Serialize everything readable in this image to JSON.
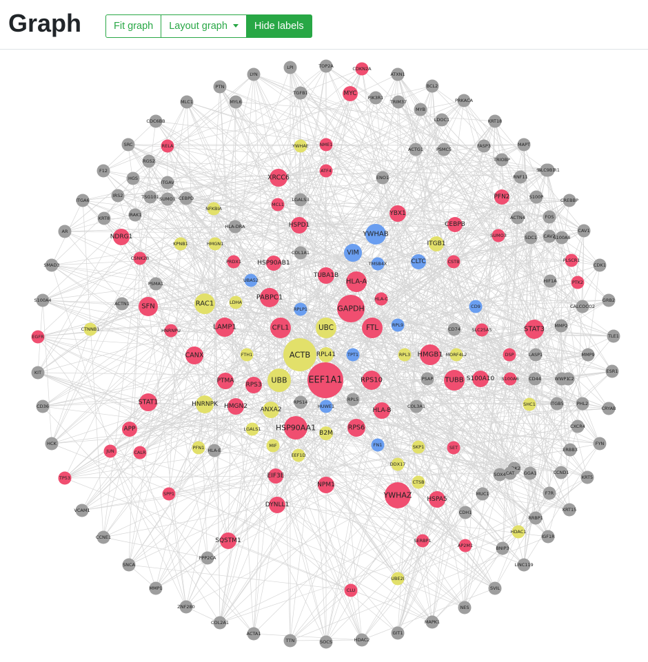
{
  "page": {
    "title": "Graph"
  },
  "toolbar": {
    "fit_label": "Fit graph",
    "layout_label": "Layout graph",
    "hide_labels_label": "Hide labels"
  },
  "colors": {
    "accent": "#28a745",
    "edge": "#d6d6d6",
    "gray": "#9e9e9e",
    "red": "#f04e70",
    "yellow": "#e2e06a",
    "blue": "#6a9ef0"
  },
  "graph": {
    "nodes": [
      [
        "LYN",
        "gray"
      ],
      [
        "LPI",
        "gray"
      ],
      [
        "TOP2A",
        "gray"
      ],
      [
        "CDKN2A",
        "red"
      ],
      [
        "ATXN1",
        "gray"
      ],
      [
        "BCL2",
        "gray"
      ],
      [
        "PRKACA",
        "gray"
      ],
      [
        "KRT18",
        "gray"
      ],
      [
        "MAPT",
        "gray"
      ],
      [
        "SLC9A3R1",
        "gray"
      ],
      [
        "CREBBP",
        "gray"
      ],
      [
        "CAV1",
        "gray"
      ],
      [
        "CDK1",
        "gray"
      ],
      [
        "PTK2",
        "red"
      ],
      [
        "GRB2",
        "gray"
      ],
      [
        "TLE1",
        "gray"
      ],
      [
        "MMP9",
        "gray"
      ],
      [
        "ESR1",
        "gray"
      ],
      [
        "CRYAB",
        "gray"
      ],
      [
        "FYN",
        "gray"
      ],
      [
        "KRT5",
        "gray"
      ],
      [
        "KRT15",
        "gray"
      ],
      [
        "IGF1R",
        "gray"
      ],
      [
        "LINC119",
        "gray"
      ],
      [
        "SVIL",
        "gray"
      ],
      [
        "NES",
        "gray"
      ],
      [
        "MAPK1",
        "gray"
      ],
      [
        "GIT1",
        "gray"
      ],
      [
        "HDAC2",
        "gray"
      ],
      [
        "SOCS",
        "gray"
      ],
      [
        "TTN",
        "gray"
      ],
      [
        "ACTA1",
        "gray"
      ],
      [
        "COL2A1",
        "gray"
      ],
      [
        "ZNF280",
        "gray"
      ],
      [
        "MMP1",
        "gray"
      ],
      [
        "SNCA",
        "gray"
      ],
      [
        "CCNE1",
        "gray"
      ],
      [
        "VCAM1",
        "gray"
      ],
      [
        "TP53",
        "red"
      ],
      [
        "HCK",
        "gray"
      ],
      [
        "CD36",
        "gray"
      ],
      [
        "KIT",
        "gray"
      ],
      [
        "EGFR",
        "red"
      ],
      [
        "S100A4",
        "gray"
      ],
      [
        "SMAD3",
        "gray"
      ],
      [
        "AR",
        "gray"
      ],
      [
        "ITGA6",
        "gray"
      ],
      [
        "F12",
        "gray"
      ],
      [
        "SRC",
        "gray"
      ],
      [
        "CDC6BB",
        "gray"
      ],
      [
        "MLC1",
        "gray"
      ],
      [
        "PTN",
        "gray"
      ],
      [
        "FN1",
        "blue"
      ],
      [
        "MYC",
        "red"
      ],
      [
        "PIK3R1",
        "gray"
      ],
      [
        "TRIM37",
        "gray"
      ],
      [
        "MYB",
        "gray"
      ],
      [
        "LDOC1",
        "gray"
      ],
      [
        "PSMC5",
        "gray"
      ],
      [
        "FASP3",
        "gray"
      ],
      [
        "TRIOBP",
        "gray"
      ],
      [
        "RNF11",
        "gray"
      ],
      [
        "SLC9B1",
        "gray"
      ],
      [
        "S100P",
        "gray"
      ],
      [
        "FOS",
        "gray"
      ],
      [
        "CAV2",
        "gray"
      ],
      [
        "S100A8",
        "gray"
      ],
      [
        "PLSCR1",
        "red"
      ],
      [
        "HIF1A",
        "gray"
      ],
      [
        "CALCOCO2",
        "gray"
      ],
      [
        "MMP2",
        "gray"
      ],
      [
        "RAC2",
        "gray"
      ],
      [
        "PHL2",
        "gray"
      ],
      [
        "CXCR4",
        "gray"
      ],
      [
        "ERBB3",
        "gray"
      ],
      [
        "CCND1",
        "gray"
      ],
      [
        "F7R",
        "gray"
      ],
      [
        "RRBP1",
        "gray"
      ],
      [
        "HDAC1",
        "yellow"
      ],
      [
        "BNIP3",
        "gray"
      ],
      [
        "CDK2",
        "gray"
      ],
      [
        "CDH1",
        "gray"
      ],
      [
        "MUC1",
        "gray"
      ],
      [
        "GGA1",
        "gray"
      ],
      [
        "CAT",
        "gray"
      ],
      [
        "SOX4",
        "gray"
      ],
      [
        "KPNB1",
        "yellow"
      ],
      [
        "HMGN1",
        "yellow"
      ],
      [
        "NFKBIA",
        "yellow"
      ],
      [
        "RELA",
        "red"
      ],
      [
        "RGS2",
        "gray"
      ],
      [
        "ITGAV",
        "gray"
      ],
      [
        "SUMO1",
        "gray"
      ],
      [
        "CEBPD",
        "gray"
      ],
      [
        "IRS2",
        "gray"
      ],
      [
        "TSG101",
        "gray"
      ],
      [
        "HGS",
        "gray"
      ],
      [
        "KRT8",
        "gray"
      ],
      [
        "IRAK1",
        "gray"
      ],
      [
        "NDRG1",
        "red"
      ],
      [
        "CSNK2B",
        "red"
      ],
      [
        "SFN",
        "red"
      ],
      [
        "HNRNPU",
        "red"
      ],
      [
        "CANX",
        "red"
      ],
      [
        "STAT1",
        "red"
      ],
      [
        "APP",
        "red"
      ],
      [
        "JUN",
        "red"
      ],
      [
        "CALR",
        "red"
      ],
      [
        "SPP1",
        "red"
      ],
      [
        "SQSTM1",
        "red"
      ],
      [
        "CLU",
        "red"
      ],
      [
        "SERBP1",
        "red"
      ],
      [
        "AP2M1",
        "red"
      ],
      [
        "HSPA5",
        "red"
      ],
      [
        "YWHAZ",
        "red"
      ],
      [
        "NPM1",
        "red"
      ],
      [
        "EIF3E",
        "red"
      ],
      [
        "DYNLL1",
        "red"
      ],
      [
        "PTMA",
        "red"
      ],
      [
        "RPS3",
        "red"
      ],
      [
        "HMGN2",
        "red"
      ],
      [
        "HSP90AA1",
        "red"
      ],
      [
        "RPS6",
        "red"
      ],
      [
        "HLA-B",
        "red"
      ],
      [
        "RPS10",
        "red"
      ],
      [
        "TUBB",
        "red"
      ],
      [
        "S100A10",
        "red"
      ],
      [
        "S100A6",
        "red"
      ],
      [
        "DSP",
        "red"
      ],
      [
        "STAT3",
        "red"
      ],
      [
        "SLC25A5",
        "red"
      ],
      [
        "HMGB1",
        "red"
      ],
      [
        "EEF1A1",
        "red"
      ],
      [
        "GAPDH",
        "red"
      ],
      [
        "FTL",
        "red"
      ],
      [
        "CFL1",
        "red"
      ],
      [
        "LAMP1",
        "red"
      ],
      [
        "PABPC1",
        "red"
      ],
      [
        "TUBA1B",
        "red"
      ],
      [
        "HLA-A",
        "red"
      ],
      [
        "HLA-C",
        "red"
      ],
      [
        "HSP90AB1",
        "red"
      ],
      [
        "PRDX1",
        "red"
      ],
      [
        "HSPD1",
        "red"
      ],
      [
        "MCL1",
        "red"
      ],
      [
        "XRCC6",
        "red"
      ],
      [
        "ATF4",
        "red"
      ],
      [
        "NME1",
        "red"
      ],
      [
        "YBX1",
        "red"
      ],
      [
        "CEBPB",
        "red"
      ],
      [
        "PFN2",
        "red"
      ],
      [
        "SUMO3",
        "red"
      ],
      [
        "CSTB",
        "red"
      ],
      [
        "SET",
        "red"
      ],
      [
        "ACTB",
        "yellow"
      ],
      [
        "UBC",
        "yellow"
      ],
      [
        "UBB",
        "yellow"
      ],
      [
        "RPL41",
        "yellow"
      ],
      [
        "RAC1",
        "yellow"
      ],
      [
        "LDHA",
        "yellow"
      ],
      [
        "FTH1",
        "yellow"
      ],
      [
        "HNRNPK",
        "yellow"
      ],
      [
        "ANXA2",
        "yellow"
      ],
      [
        "B2M",
        "yellow"
      ],
      [
        "LGALS1",
        "yellow"
      ],
      [
        "MIF",
        "yellow"
      ],
      [
        "PFN1",
        "yellow"
      ],
      [
        "EEF1D",
        "yellow"
      ],
      [
        "DDX17",
        "yellow"
      ],
      [
        "CTSB",
        "yellow"
      ],
      [
        "UBE2I",
        "yellow"
      ],
      [
        "SKP1",
        "yellow"
      ],
      [
        "SHC1",
        "yellow"
      ],
      [
        "MORF4L2",
        "yellow"
      ],
      [
        "RPL3",
        "yellow"
      ],
      [
        "ITGB1",
        "yellow"
      ],
      [
        "YWHAE",
        "yellow"
      ],
      [
        "CTNNB1",
        "yellow"
      ],
      [
        "VIM",
        "blue"
      ],
      [
        "YWHAB",
        "blue"
      ],
      [
        "CLTC",
        "blue"
      ],
      [
        "TMSB4X",
        "blue"
      ],
      [
        "UBA52",
        "blue"
      ],
      [
        "RPLP1",
        "blue"
      ],
      [
        "RPL9",
        "blue"
      ],
      [
        "CD9",
        "blue"
      ],
      [
        "TPT1",
        "blue"
      ],
      [
        "HUWE1",
        "blue"
      ],
      [
        "COL1A1",
        "gray"
      ],
      [
        "HLA-E",
        "gray"
      ],
      [
        "RPS14",
        "gray"
      ],
      [
        "RPL5",
        "gray"
      ],
      [
        "PSMA1",
        "gray"
      ],
      [
        "ACTN4",
        "gray"
      ],
      [
        "PPP2CA",
        "gray"
      ],
      [
        "PSAP",
        "gray"
      ],
      [
        "CD74",
        "gray"
      ],
      [
        "COL3A1",
        "gray"
      ],
      [
        "LASP1",
        "gray"
      ],
      [
        "CD44",
        "gray"
      ],
      [
        "WWP1",
        "gray"
      ],
      [
        "ITGB5",
        "gray"
      ],
      [
        "TGFB1",
        "gray"
      ],
      [
        "SDC1",
        "gray"
      ],
      [
        "ENO1",
        "gray"
      ],
      [
        "LGALS3",
        "gray"
      ],
      [
        "HLA-DRA",
        "gray"
      ],
      [
        "ACTN1",
        "gray"
      ],
      [
        "ACTG1",
        "gray"
      ],
      [
        "MYL6",
        "gray"
      ]
    ]
  }
}
